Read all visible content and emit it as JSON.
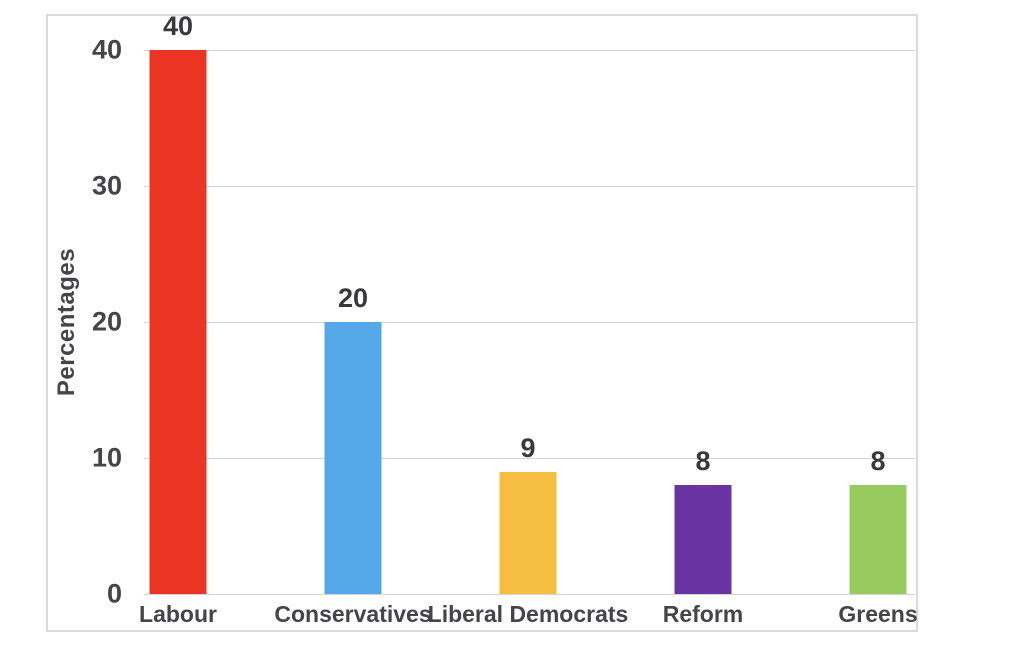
{
  "chart_data": {
    "type": "bar",
    "title": "",
    "ylabel": "Percentages",
    "xlabel": "",
    "categories": [
      "Labour",
      "Conservatives",
      "Liberal Democrats",
      "Reform",
      "Greens"
    ],
    "values": [
      40,
      20,
      9,
      8,
      8
    ],
    "data_labels": [
      "40",
      "20",
      "9",
      "8",
      "8"
    ],
    "bar_colors": [
      "#ea3424",
      "#55a8e8",
      "#f6be41",
      "#6a33a2",
      "#97cb5f"
    ],
    "yticks": [
      "0",
      "10",
      "20",
      "30",
      "40"
    ],
    "ytick_values": [
      0,
      10,
      20,
      30,
      40
    ],
    "ylim": [
      0,
      40
    ],
    "grid": true,
    "legend": false,
    "legend_position": "none"
  },
  "colors": {
    "text": "#454447",
    "value_label_text": "#39383b",
    "gridline": "#d2d2d7",
    "frame_border": "#dbdbdf",
    "background": "#ffffff"
  }
}
